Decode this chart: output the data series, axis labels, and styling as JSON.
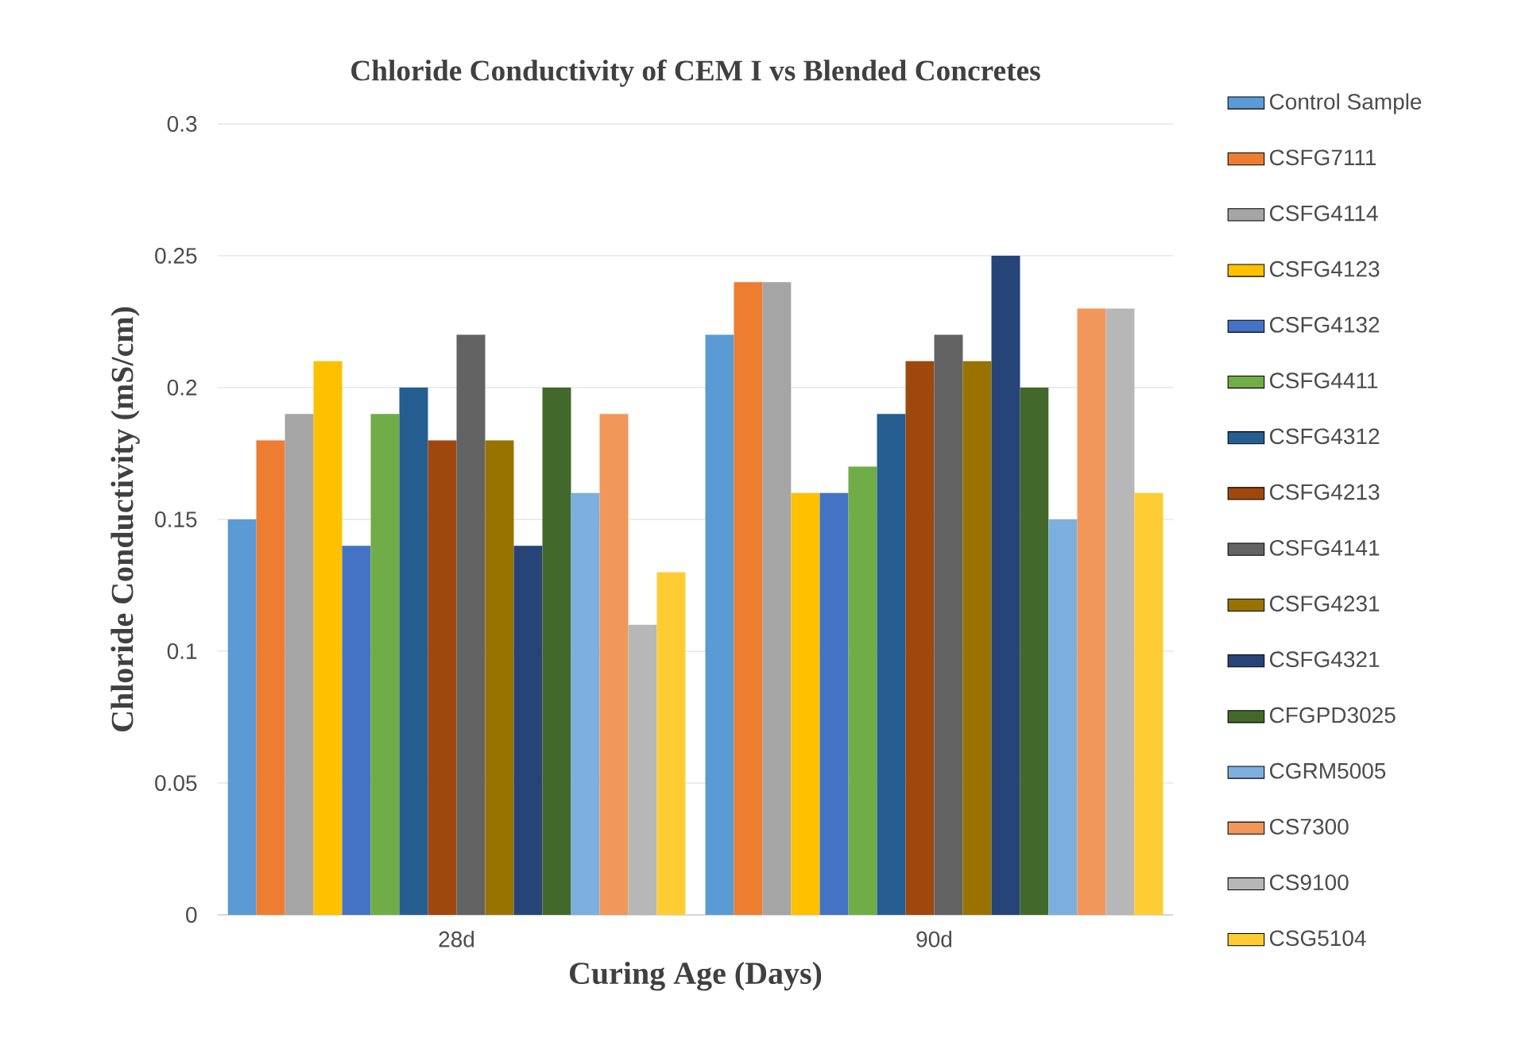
{
  "chart_data": {
    "type": "bar",
    "title": "Chloride Conductivity of CEM I vs Blended Concretes",
    "xlabel": "Curing Age (Days)",
    "ylabel": "Chloride Conductivity (mS/cm)",
    "categories": [
      "28d",
      "90d"
    ],
    "ylim": [
      0,
      0.3
    ],
    "yticks": [
      0,
      0.05,
      0.1,
      0.15,
      0.2,
      0.25,
      0.3
    ],
    "grid": "y",
    "legend": "right",
    "series": [
      {
        "name": "Control Sample",
        "color": "#5b9bd5",
        "values": [
          0.15,
          0.22
        ]
      },
      {
        "name": "CSFG7111",
        "color": "#ed7d31",
        "values": [
          0.18,
          0.24
        ]
      },
      {
        "name": "CSFG4114",
        "color": "#a5a5a5",
        "values": [
          0.19,
          0.24
        ]
      },
      {
        "name": "CSFG4123",
        "color": "#ffc000",
        "values": [
          0.21,
          0.16
        ]
      },
      {
        "name": "CSFG4132",
        "color": "#4472c4",
        "values": [
          0.14,
          0.16
        ]
      },
      {
        "name": "CSFG4411",
        "color": "#70ad47",
        "values": [
          0.19,
          0.17
        ]
      },
      {
        "name": "CSFG4312",
        "color": "#255e91",
        "values": [
          0.2,
          0.19
        ]
      },
      {
        "name": "CSFG4213",
        "color": "#9e480e",
        "values": [
          0.18,
          0.21
        ]
      },
      {
        "name": "CSFG4141",
        "color": "#636363",
        "values": [
          0.22,
          0.22
        ]
      },
      {
        "name": "CSFG4231",
        "color": "#997300",
        "values": [
          0.18,
          0.21
        ]
      },
      {
        "name": "CSFG4321",
        "color": "#264478",
        "values": [
          0.14,
          0.25
        ]
      },
      {
        "name": "CFGPD3025",
        "color": "#43682b",
        "values": [
          0.2,
          0.2
        ]
      },
      {
        "name": "CGRM5005",
        "color": "#7cafdd",
        "values": [
          0.16,
          0.15
        ]
      },
      {
        "name": "CS7300",
        "color": "#f1975a",
        "values": [
          0.19,
          0.23
        ]
      },
      {
        "name": "CS9100",
        "color": "#b7b7b7",
        "values": [
          0.11,
          0.23
        ]
      },
      {
        "name": "CSG5104",
        "color": "#ffcd33",
        "values": [
          0.13,
          0.16
        ]
      }
    ]
  }
}
